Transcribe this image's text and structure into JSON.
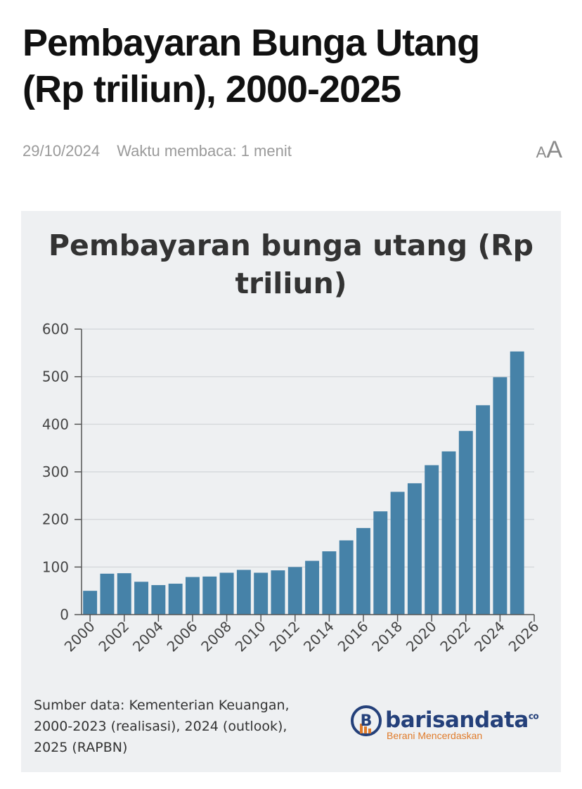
{
  "article": {
    "headline_line1": "Pembayaran Bunga Utang",
    "headline_line2": "(Rp triliun), 2000-2025",
    "date": "29/10/2024",
    "reading_time": "Waktu membaca: 1 menit",
    "font_size_small": "A",
    "font_size_large": "A"
  },
  "chart_data": {
    "type": "bar",
    "title_line1": "Pembayaran bunga utang (Rp",
    "title_line2": "triliun)",
    "x": [
      2000,
      2001,
      2002,
      2003,
      2004,
      2005,
      2006,
      2007,
      2008,
      2009,
      2010,
      2011,
      2012,
      2013,
      2014,
      2015,
      2016,
      2017,
      2018,
      2019,
      2020,
      2021,
      2022,
      2023,
      2024,
      2025
    ],
    "values": [
      50,
      86,
      87,
      69,
      62,
      65,
      79,
      80,
      88,
      94,
      88,
      93,
      100,
      113,
      133,
      156,
      182,
      217,
      258,
      276,
      314,
      343,
      386,
      440,
      499,
      553
    ],
    "ylim": [
      0,
      600
    ],
    "yticks": [
      "0",
      "100",
      "200",
      "300",
      "400",
      "500",
      "600"
    ],
    "xticks": [
      "2000",
      "2002",
      "2004",
      "2006",
      "2008",
      "2010",
      "2012",
      "2014",
      "2016",
      "2018",
      "2020",
      "2022",
      "2024",
      "2026"
    ],
    "xlim": [
      1999.5,
      2026
    ],
    "grid": true,
    "bar_color": "#4682a8"
  },
  "source": {
    "line1": "Sumber data: Kementerian Keuangan,",
    "line2": "2000-2023 (realisasi), 2024 (outlook),",
    "line3": "2025 (RAPBN)"
  },
  "logo": {
    "brand": "barisandata",
    "suffix": "co",
    "tagline": "Berani Mencerdaskan",
    "primary_color": "#24407a",
    "accent_color": "#e07b2a"
  }
}
